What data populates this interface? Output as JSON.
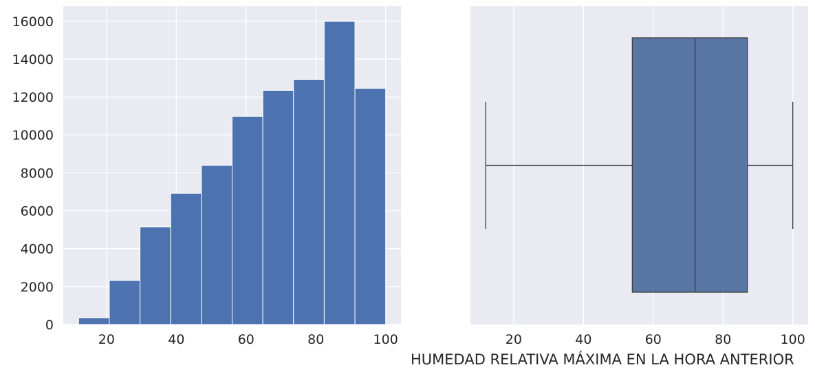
{
  "chart_data": [
    {
      "type": "histogram",
      "bins": [
        {
          "x0": 12.0,
          "x1": 20.8,
          "count": 350
        },
        {
          "x0": 20.8,
          "x1": 29.6,
          "count": 2320
        },
        {
          "x0": 29.6,
          "x1": 38.4,
          "count": 5150
        },
        {
          "x0": 38.4,
          "x1": 47.2,
          "count": 6920
        },
        {
          "x0": 47.2,
          "x1": 56.0,
          "count": 8400
        },
        {
          "x0": 56.0,
          "x1": 64.8,
          "count": 10980
        },
        {
          "x0": 64.8,
          "x1": 73.6,
          "count": 12350
        },
        {
          "x0": 73.6,
          "x1": 82.4,
          "count": 12930
        },
        {
          "x0": 82.4,
          "x1": 91.2,
          "count": 15990
        },
        {
          "x0": 91.2,
          "x1": 100.0,
          "count": 12460
        }
      ],
      "xticks": [
        "20",
        "40",
        "60",
        "80",
        "100"
      ],
      "yticks": [
        "0",
        "2000",
        "4000",
        "6000",
        "8000",
        "10000",
        "12000",
        "14000",
        "16000"
      ],
      "xlim": [
        7.6,
        104.4
      ],
      "ylim": [
        0,
        16790
      ],
      "xlabel": "",
      "ylabel": "",
      "grid": true,
      "bar_color": "#4C72B0",
      "background_color": "#EAEAF2"
    },
    {
      "type": "box",
      "orientation": "horizontal",
      "whisker_low": 12,
      "q1": 54,
      "median": 72,
      "q3": 87,
      "whisker_high": 100,
      "xticks": [
        "20",
        "40",
        "60",
        "80",
        "100"
      ],
      "xlim": [
        7.6,
        104.4
      ],
      "xlabel": "HUMEDAD RELATIVA MÁXIMA EN LA HORA ANTERIOR",
      "grid": true,
      "box_color": "#5875A4",
      "line_color": "#3D3D3D",
      "background_color": "#EAEAF2"
    }
  ]
}
